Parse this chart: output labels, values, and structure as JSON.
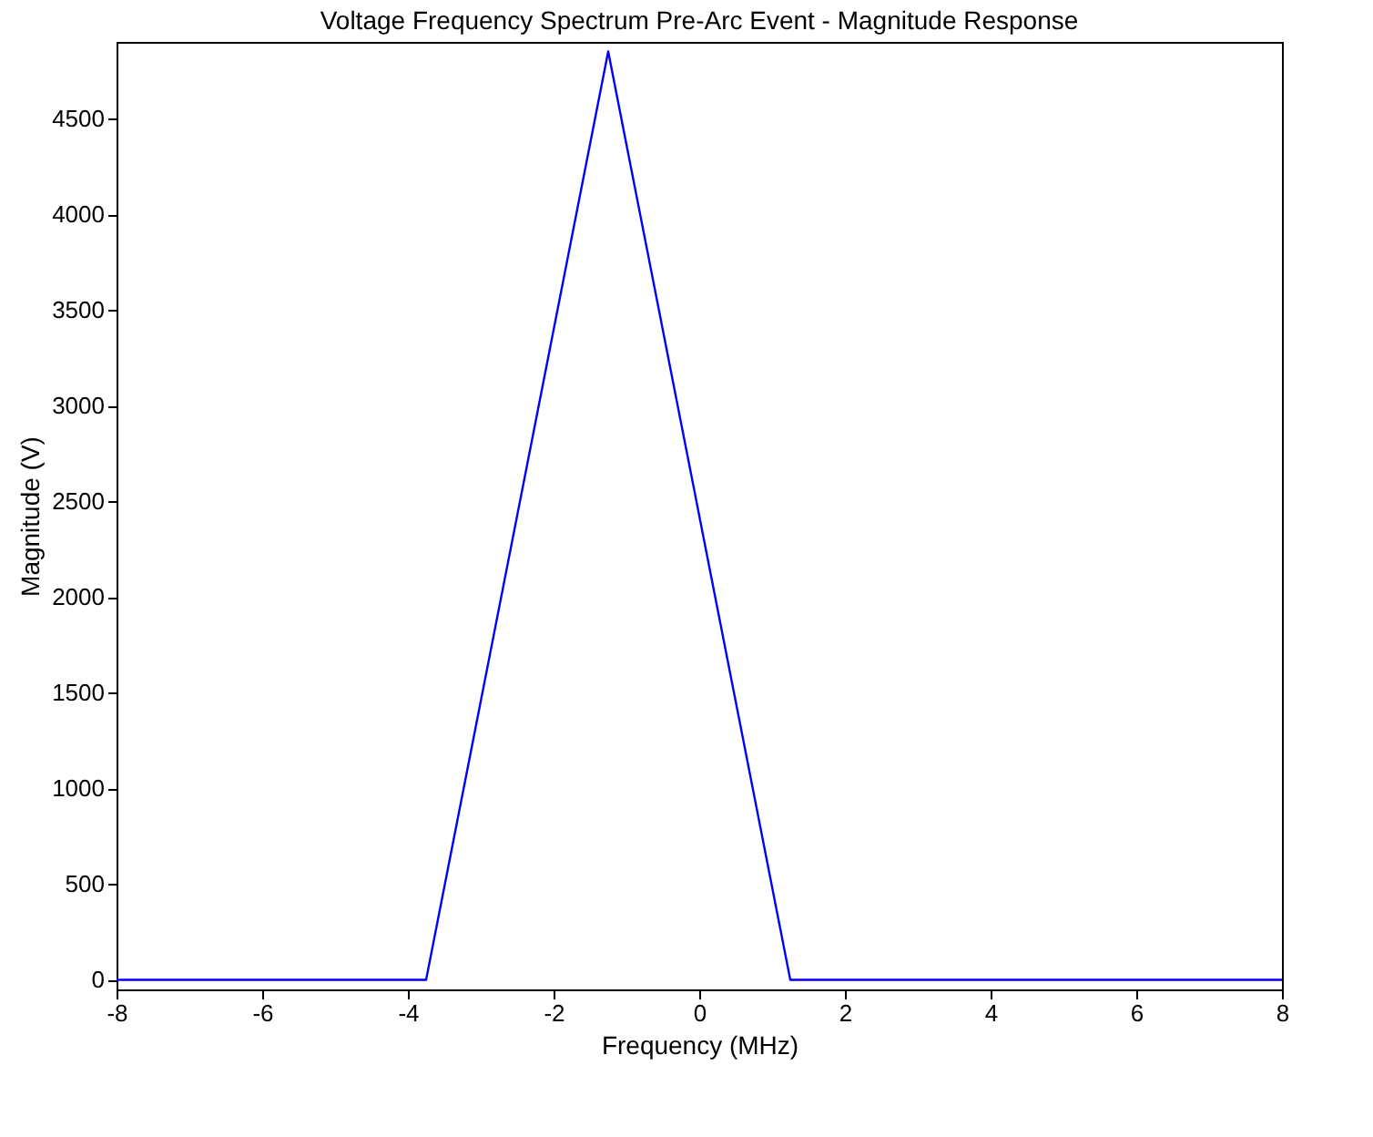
{
  "chart_data": {
    "type": "line",
    "title": "Voltage Frequency Spectrum Pre-Arc Event - Magnitude Response",
    "xlabel": "Frequency (MHz)",
    "ylabel": "Magnitude (V)",
    "x": [
      -8,
      -3.75,
      -1.25,
      1.25,
      8
    ],
    "series": [
      {
        "color": "#0000ff",
        "values": [
          0,
          0,
          4850,
          0,
          0
        ]
      }
    ],
    "xlim": [
      -8,
      8
    ],
    "ylim": [
      -50,
      4900
    ],
    "xticks": [
      -8,
      -6,
      -4,
      -2,
      0,
      2,
      4,
      6,
      8
    ],
    "yticks": [
      0,
      500,
      1000,
      1500,
      2000,
      2500,
      3000,
      3500,
      4000,
      4500
    ],
    "grid": false,
    "marker": "none",
    "line_style": "solid"
  }
}
